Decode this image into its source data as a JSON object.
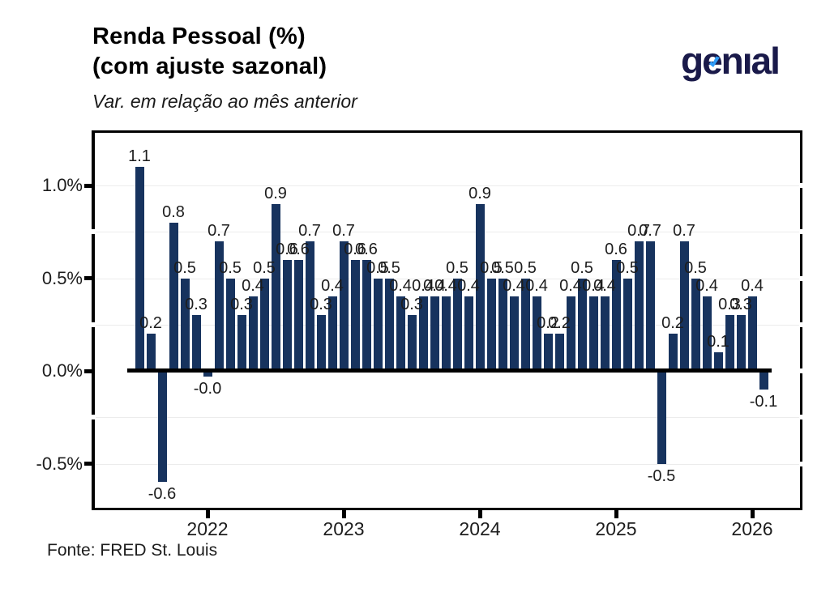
{
  "header": {
    "title_line1": "Renda Pessoal (%)",
    "title_line2": "(com ajuste sazonal)",
    "subtitle": "Var. em relação ao mês anterior",
    "logo_text": "genıal"
  },
  "footer": {
    "source": "Fonte: FRED St. Louis"
  },
  "colors": {
    "bar": "#17335e",
    "logo_navy": "#1a1a4a",
    "logo_accent_blue": "#2e9bf7",
    "axis_black": "#000000",
    "gridline_gray": "#ececec"
  },
  "chart_data": {
    "type": "bar",
    "title": "Renda Pessoal (%) (com ajuste sazonal)",
    "subtitle": "Var. em relação ao mês anterior",
    "source": "Fonte: FRED St. Louis",
    "ylabel": "",
    "xlabel": "",
    "ylim": [
      -0.75,
      1.3
    ],
    "grid": true,
    "y_ticks": [
      1.0,
      0.5,
      0.0,
      -0.5
    ],
    "y_tick_labels": [
      "1.0%",
      "0.5%",
      "0.0%",
      "-0.5%"
    ],
    "x_tick_labels": [
      "2022",
      "2023",
      "2024",
      "2025",
      "2026"
    ],
    "series": [
      {
        "month": "2021-07",
        "value": 1.1,
        "label": "1.1"
      },
      {
        "month": "2021-08",
        "value": 0.2,
        "label": "0.2"
      },
      {
        "month": "2021-09",
        "value": -0.6,
        "label": "-0.6"
      },
      {
        "month": "2021-10",
        "value": 0.8,
        "label": "0.8"
      },
      {
        "month": "2021-11",
        "value": 0.5,
        "label": "0.5"
      },
      {
        "month": "2021-12",
        "value": 0.3,
        "label": "0.3"
      },
      {
        "month": "2022-01",
        "value": -0.03,
        "label": "-0.0"
      },
      {
        "month": "2022-02",
        "value": 0.7,
        "label": "0.7"
      },
      {
        "month": "2022-03",
        "value": 0.5,
        "label": "0.5"
      },
      {
        "month": "2022-04",
        "value": 0.3,
        "label": "0.3"
      },
      {
        "month": "2022-05",
        "value": 0.4,
        "label": "0.4"
      },
      {
        "month": "2022-06",
        "value": 0.5,
        "label": "0.5"
      },
      {
        "month": "2022-07",
        "value": 0.9,
        "label": "0.9"
      },
      {
        "month": "2022-08",
        "value": 0.6,
        "label": "0.6"
      },
      {
        "month": "2022-09",
        "value": 0.6,
        "label": "0.6"
      },
      {
        "month": "2022-10",
        "value": 0.7,
        "label": "0.7"
      },
      {
        "month": "2022-11",
        "value": 0.3,
        "label": "0.3"
      },
      {
        "month": "2022-12",
        "value": 0.4,
        "label": "0.4"
      },
      {
        "month": "2023-01",
        "value": 0.7,
        "label": "0.7"
      },
      {
        "month": "2023-02",
        "value": 0.6,
        "label": "0.6"
      },
      {
        "month": "2023-03",
        "value": 0.6,
        "label": "0.6"
      },
      {
        "month": "2023-04",
        "value": 0.5,
        "label": "0.5"
      },
      {
        "month": "2023-05",
        "value": 0.5,
        "label": "0.5"
      },
      {
        "month": "2023-06",
        "value": 0.4,
        "label": "0.4"
      },
      {
        "month": "2023-07",
        "value": 0.3,
        "label": "0.3"
      },
      {
        "month": "2023-08",
        "value": 0.4,
        "label": "0.4"
      },
      {
        "month": "2023-09",
        "value": 0.4,
        "label": "0.4"
      },
      {
        "month": "2023-10",
        "value": 0.4,
        "label": "0.4"
      },
      {
        "month": "2023-11",
        "value": 0.5,
        "label": "0.5"
      },
      {
        "month": "2023-12",
        "value": 0.4,
        "label": "0.4"
      },
      {
        "month": "2024-01",
        "value": 0.9,
        "label": "0.9"
      },
      {
        "month": "2024-02",
        "value": 0.5,
        "label": "0.5"
      },
      {
        "month": "2024-03",
        "value": 0.5,
        "label": "0.5"
      },
      {
        "month": "2024-04",
        "value": 0.4,
        "label": "0.4"
      },
      {
        "month": "2024-05",
        "value": 0.5,
        "label": "0.5"
      },
      {
        "month": "2024-06",
        "value": 0.4,
        "label": "0.4"
      },
      {
        "month": "2024-07",
        "value": 0.2,
        "label": "0.2"
      },
      {
        "month": "2024-08",
        "value": 0.2,
        "label": "0.2"
      },
      {
        "month": "2024-09",
        "value": 0.4,
        "label": "0.4"
      },
      {
        "month": "2024-10",
        "value": 0.5,
        "label": "0.5"
      },
      {
        "month": "2024-11",
        "value": 0.4,
        "label": "0.4"
      },
      {
        "month": "2024-12",
        "value": 0.4,
        "label": "0.4"
      },
      {
        "month": "2025-01",
        "value": 0.6,
        "label": "0.6"
      },
      {
        "month": "2025-02",
        "value": 0.5,
        "label": "0.5"
      },
      {
        "month": "2025-03",
        "value": 0.7,
        "label": "0.7"
      },
      {
        "month": "2025-04",
        "value": 0.7,
        "label": "0.7"
      },
      {
        "month": "2025-05",
        "value": -0.5,
        "label": "-0.5"
      },
      {
        "month": "2025-06",
        "value": 0.2,
        "label": "0.2"
      },
      {
        "month": "2025-07",
        "value": 0.7,
        "label": "0.7"
      },
      {
        "month": "2025-08",
        "value": 0.5,
        "label": "0.5"
      },
      {
        "month": "2025-09",
        "value": 0.4,
        "label": "0.4"
      },
      {
        "month": "2025-10",
        "value": 0.1,
        "label": "0.1"
      },
      {
        "month": "2025-11",
        "value": 0.3,
        "label": "0.3"
      },
      {
        "month": "2025-12",
        "value": 0.3,
        "label": "0.3"
      },
      {
        "month": "2026-01",
        "value": 0.4,
        "label": "0.4"
      },
      {
        "month": "2026-02",
        "value": -0.1,
        "label": "-0.1"
      }
    ]
  }
}
